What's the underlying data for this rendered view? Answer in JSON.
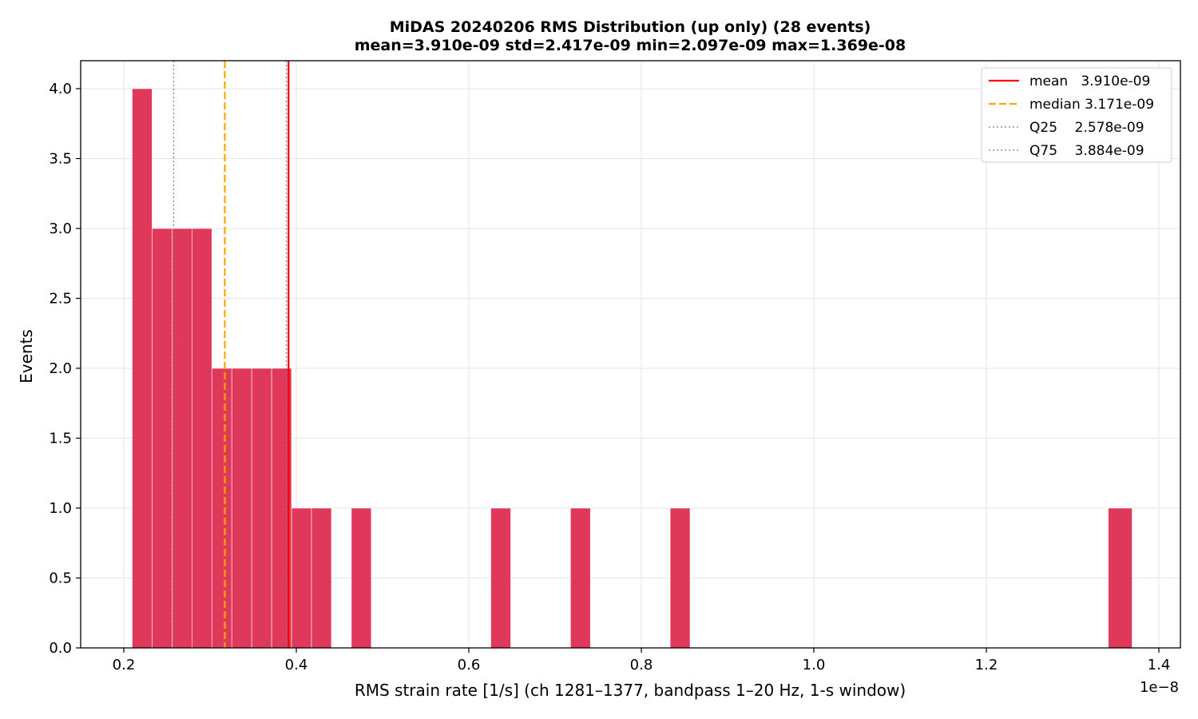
{
  "chart_data": {
    "type": "bar",
    "title": "MiDAS 20240206  RMS Distribution  (up only)  (28 events)",
    "subtitle": "mean=3.910e-09  std=2.417e-09  min=2.097e-09  max=1.369e-08",
    "xlabel": "RMS strain rate [1/s]  (ch 1281–1377, bandpass 1–20 Hz, 1-s window)",
    "ylabel": "Events",
    "x_offset_label": "1e−8",
    "xlim": [
      0.15,
      1.425
    ],
    "ylim": [
      0,
      4.2
    ],
    "x_ticks": [
      0.2,
      0.4,
      0.6,
      0.8,
      1.0,
      1.2,
      1.4
    ],
    "x_tick_labels": [
      "0.2",
      "0.4",
      "0.6",
      "0.8",
      "1.0",
      "1.2",
      "1.4"
    ],
    "y_ticks": [
      0,
      0.5,
      1,
      1.5,
      2,
      2.5,
      3,
      3.5,
      4
    ],
    "y_tick_labels": [
      "0.0",
      "0.5",
      "1.0",
      "1.5",
      "2.0",
      "2.5",
      "3.0",
      "3.5",
      "4.0"
    ],
    "grid": true,
    "bar_color": "#e0385a",
    "bins": [
      {
        "x0": 0.2097,
        "x1": 0.2328,
        "count": 4
      },
      {
        "x0": 0.2328,
        "x1": 0.2559,
        "count": 3
      },
      {
        "x0": 0.2559,
        "x1": 0.279,
        "count": 3
      },
      {
        "x0": 0.279,
        "x1": 0.3021,
        "count": 3
      },
      {
        "x0": 0.3021,
        "x1": 0.3252,
        "count": 2
      },
      {
        "x0": 0.3252,
        "x1": 0.3483,
        "count": 2
      },
      {
        "x0": 0.3483,
        "x1": 0.3714,
        "count": 2
      },
      {
        "x0": 0.3714,
        "x1": 0.3945,
        "count": 2
      },
      {
        "x0": 0.3945,
        "x1": 0.4176,
        "count": 1
      },
      {
        "x0": 0.4176,
        "x1": 0.4407,
        "count": 1
      },
      {
        "x0": 0.4638,
        "x1": 0.4869,
        "count": 1
      },
      {
        "x0": 0.6255,
        "x1": 0.6486,
        "count": 1
      },
      {
        "x0": 0.7179,
        "x1": 0.741,
        "count": 1
      },
      {
        "x0": 0.8334,
        "x1": 0.8565,
        "count": 1
      },
      {
        "x0": 1.3413,
        "x1": 1.369,
        "count": 1
      }
    ],
    "ref_lines": [
      {
        "id": "mean",
        "x": 0.391,
        "color": "#ff0000",
        "style": "solid"
      },
      {
        "id": "median",
        "x": 0.3171,
        "color": "#ffa500",
        "style": "dashed"
      },
      {
        "id": "q25",
        "x": 0.2578,
        "color": "#808080",
        "style": "dotted"
      },
      {
        "id": "q75",
        "x": 0.3884,
        "color": "#808080",
        "style": "dotted"
      }
    ],
    "legend_position": "top-right",
    "legend": [
      {
        "line": "mean",
        "label": "mean   3.910e-09"
      },
      {
        "line": "median",
        "label": "median 3.171e-09"
      },
      {
        "line": "q25",
        "label": "Q25    2.578e-09"
      },
      {
        "line": "q75",
        "label": "Q75    3.884e-09"
      }
    ]
  }
}
